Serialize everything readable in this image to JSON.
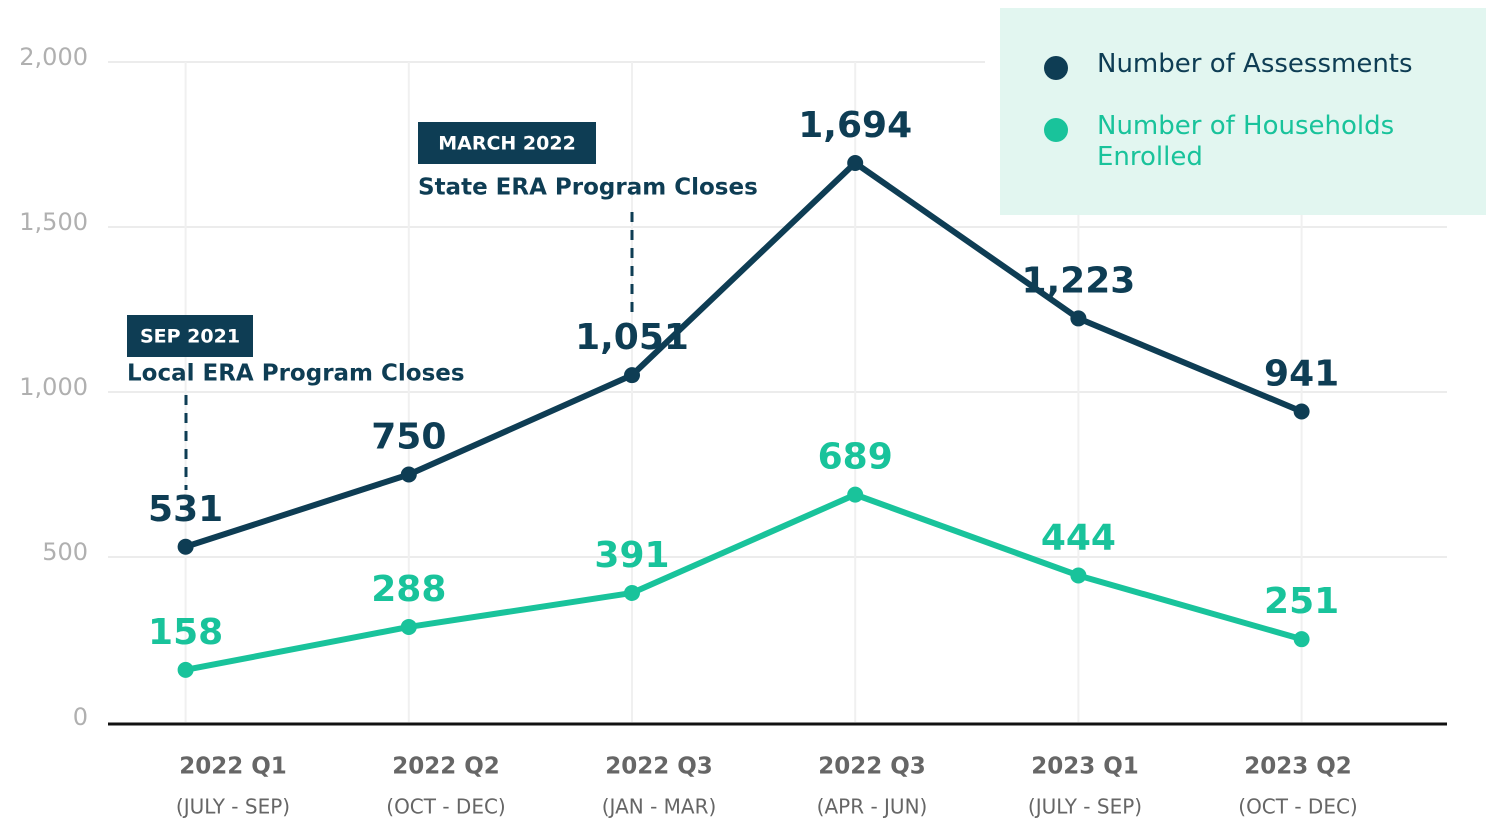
{
  "chart_data": {
    "type": "line",
    "categories": [
      "2022 Q1",
      "2022 Q2",
      "2022 Q3",
      "2022 Q3",
      "2023 Q1",
      "2023 Q2"
    ],
    "category_periods": [
      "(JULY - SEP)",
      "(OCT - DEC)",
      "(JAN - MAR)",
      "(APR - JUN)",
      "(JULY - SEP)",
      "(OCT - DEC)"
    ],
    "series": [
      {
        "name": "Number of Assessments",
        "color": "#0e3d54",
        "values": [
          531,
          750,
          1051,
          1694,
          1223,
          941
        ],
        "value_labels": [
          "531",
          "750",
          "1,051",
          "1,694",
          "1,223",
          "941"
        ]
      },
      {
        "name": "Number of Households Enrolled",
        "color": "#19c39b",
        "values": [
          158,
          288,
          391,
          689,
          444,
          251
        ],
        "value_labels": [
          "158",
          "288",
          "391",
          "689",
          "444",
          "251"
        ]
      }
    ],
    "ylim": [
      0,
      2000
    ],
    "yticks": [
      0,
      500,
      {
        "value": 1000,
        "label": "1,000"
      },
      {
        "value": 1500,
        "label": "1,500"
      },
      {
        "value": 2000,
        "label": "2,000"
      }
    ],
    "grid": true,
    "legend": "top-right",
    "annotations": [
      {
        "tag": "SEP 2021",
        "text": "Local ERA Program Closes"
      },
      {
        "tag": "MARCH 2022",
        "text": "State ERA Program Closes"
      }
    ]
  }
}
